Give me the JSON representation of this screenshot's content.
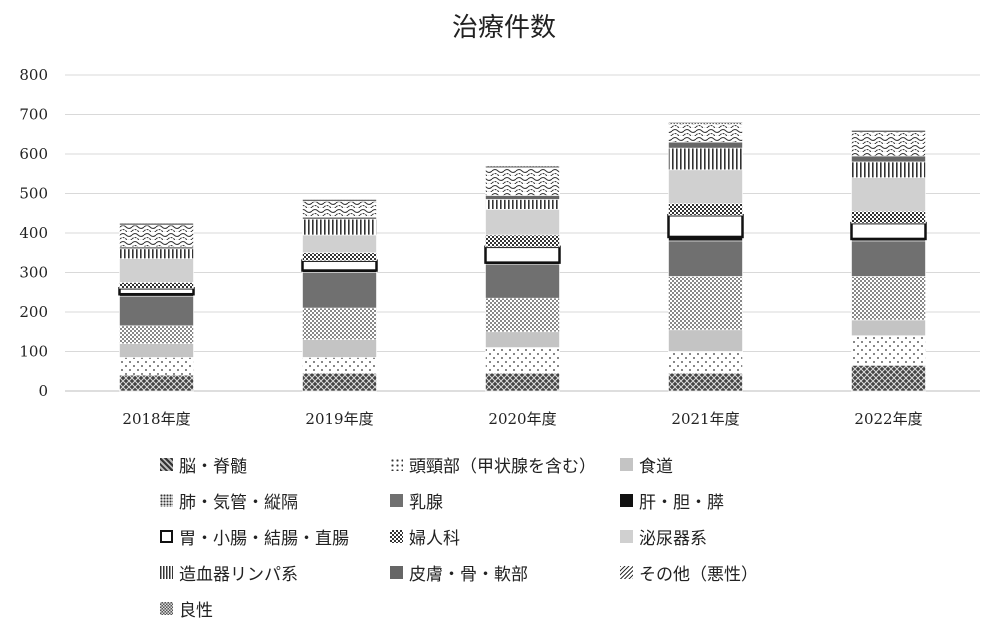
{
  "chart_data": {
    "type": "bar",
    "stacked": true,
    "title": "治療件数",
    "categories": [
      "2018年度",
      "2019年度",
      "2020年度",
      "2021年度",
      "2022年度"
    ],
    "ylim": [
      0,
      800
    ],
    "yticks": [
      0,
      100,
      200,
      300,
      400,
      500,
      600,
      700,
      800
    ],
    "grid": true,
    "legend_position": "bottom",
    "series": [
      {
        "name": "脳・脊髄",
        "pattern": "crosshatch-dark",
        "values": [
          40,
          45,
          45,
          45,
          65
        ]
      },
      {
        "name": "頭頸部（甲状腺を含む）",
        "pattern": "dots-sparse",
        "values": [
          45,
          40,
          65,
          55,
          75
        ]
      },
      {
        "name": "食道",
        "pattern": "solid-light",
        "values": [
          35,
          45,
          40,
          55,
          40
        ]
      },
      {
        "name": "肺・気管・縦隔",
        "pattern": "dots-dense",
        "values": [
          45,
          80,
          85,
          135,
          110
        ]
      },
      {
        "name": "乳腺",
        "pattern": "solid-dark",
        "values": [
          75,
          90,
          85,
          90,
          90
        ]
      },
      {
        "name": "肝・胆・膵",
        "pattern": "solid-black",
        "values": [
          5,
          5,
          5,
          10,
          5
        ]
      },
      {
        "name": "胃・小腸・結腸・直腸",
        "pattern": "outline",
        "values": [
          15,
          25,
          40,
          55,
          40
        ]
      },
      {
        "name": "婦人科",
        "pattern": "checker",
        "values": [
          15,
          20,
          30,
          30,
          30
        ]
      },
      {
        "name": "泌尿器系",
        "pattern": "solid-pale",
        "values": [
          60,
          45,
          65,
          85,
          85
        ]
      },
      {
        "name": "造血器リンパ系",
        "pattern": "vertical-lines",
        "values": [
          25,
          40,
          25,
          55,
          40
        ]
      },
      {
        "name": "皮膚・骨・軟部",
        "pattern": "solid-mid",
        "values": [
          5,
          5,
          10,
          15,
          15
        ]
      },
      {
        "name": "その他（悪性）",
        "pattern": "waves",
        "values": [
          55,
          40,
          70,
          45,
          60
        ]
      },
      {
        "name": "良性",
        "pattern": "grid-dense",
        "values": [
          5,
          5,
          5,
          5,
          5
        ]
      }
    ]
  }
}
